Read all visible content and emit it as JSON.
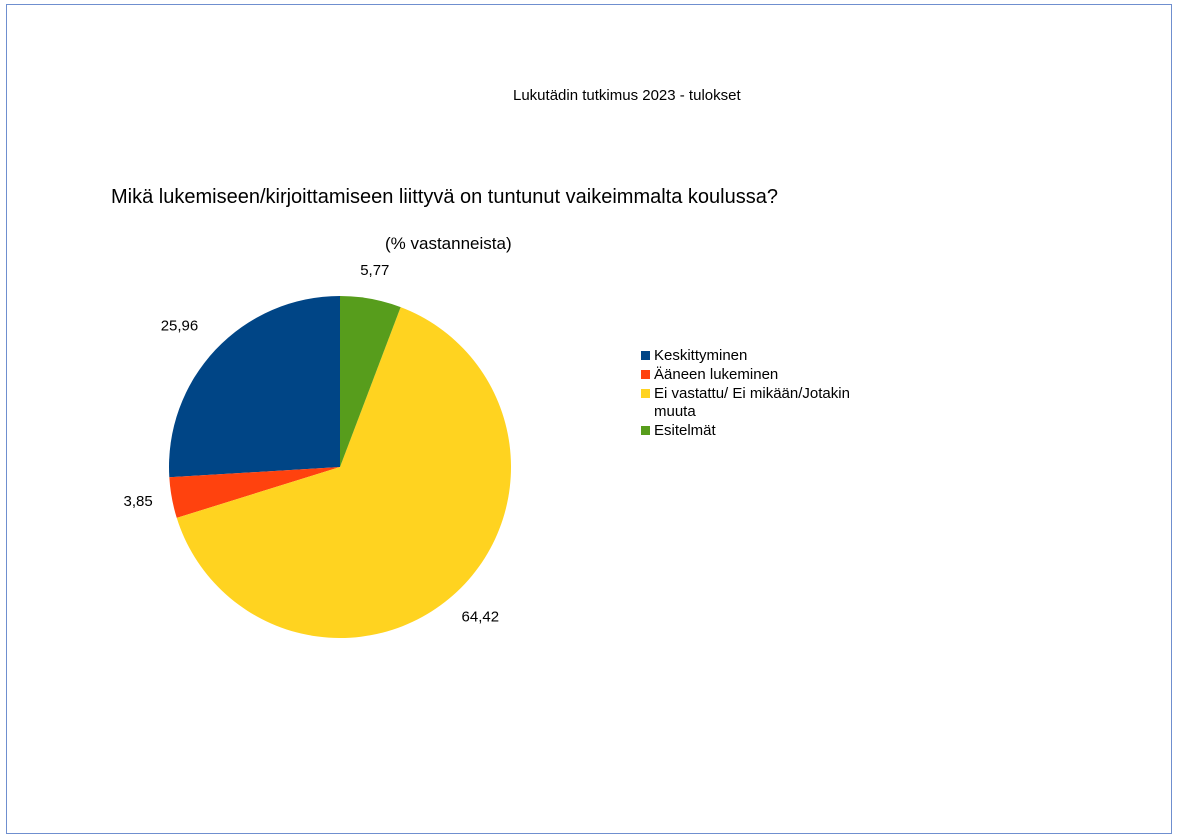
{
  "header": "Lukutädin tutkimus 2023 - tulokset",
  "chart_data": {
    "type": "pie",
    "title": "Mikä lukemiseen/kirjoittamiseen liittyvä on tuntunut vaikeimmalta koulussa?",
    "subtitle": "(% vastanneista)",
    "legend_position": "right",
    "slices": [
      {
        "label": "Keskittyminen",
        "value": 25.96,
        "value_label": "25,96",
        "color": "#004586"
      },
      {
        "label": "Ääneen lukeminen",
        "value": 3.85,
        "value_label": "3,85",
        "color": "#ff420e"
      },
      {
        "label": "Ei vastattu/ Ei mikään/Jotakin muuta",
        "value": 64.42,
        "value_label": "64,42",
        "color": "#ffd320"
      },
      {
        "label": "Esitelmät",
        "value": 5.77,
        "value_label": "5,77",
        "color": "#579d1c"
      }
    ]
  }
}
